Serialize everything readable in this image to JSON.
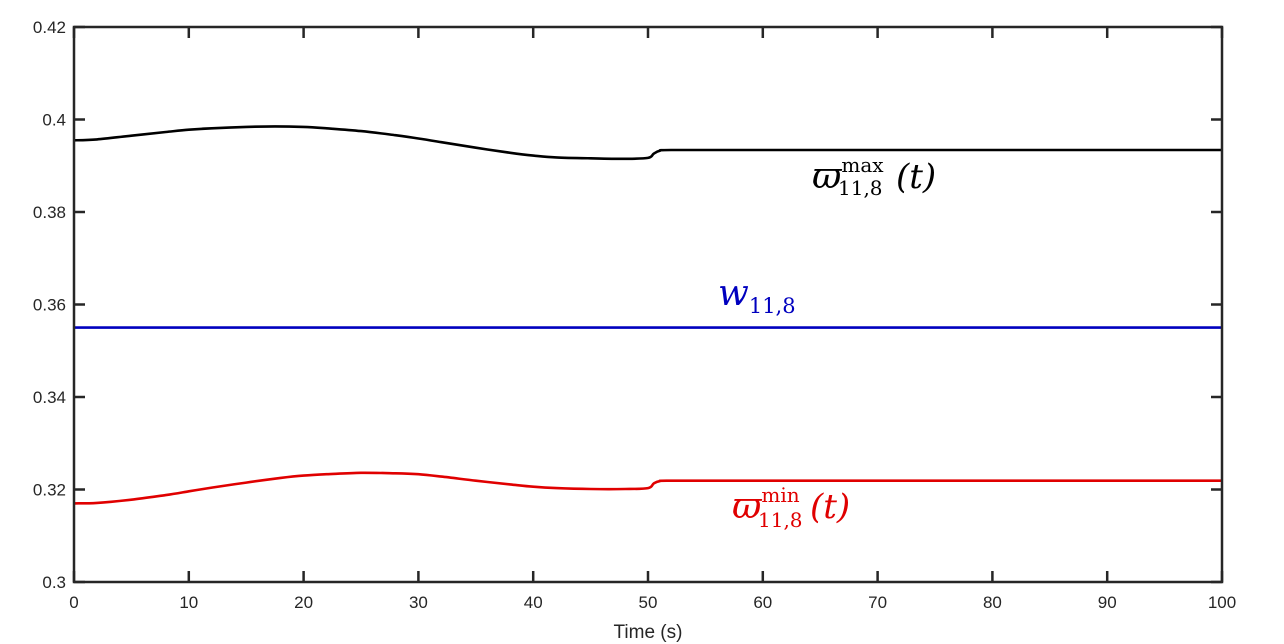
{
  "chart_data": {
    "type": "line",
    "xlabel": "Time (s)",
    "ylabel": "",
    "xlim": [
      0,
      100
    ],
    "ylim": [
      0.3,
      0.42
    ],
    "x_ticks": [
      0,
      10,
      20,
      30,
      40,
      50,
      60,
      70,
      80,
      90,
      100
    ],
    "y_ticks": [
      0.3,
      0.32,
      0.34,
      0.36,
      0.38,
      0.4,
      0.42
    ],
    "y_tick_labels": [
      "0.3",
      "0.32",
      "0.34",
      "0.36",
      "0.38",
      "0.4",
      "0.42"
    ],
    "grid": false,
    "series": [
      {
        "key": "max",
        "color": "#000000",
        "x": [
          0,
          2,
          5,
          8,
          10,
          12,
          15,
          17.5,
          20,
          22,
          25,
          28,
          30,
          32,
          35,
          38,
          40,
          42,
          45,
          48,
          50,
          50.5,
          51,
          52,
          60,
          70,
          80,
          90,
          100
        ],
        "y": [
          0.3955,
          0.3957,
          0.3965,
          0.3973,
          0.3978,
          0.3981,
          0.3984,
          0.3985,
          0.3984,
          0.3981,
          0.3975,
          0.3966,
          0.3959,
          0.3951,
          0.3939,
          0.3928,
          0.3922,
          0.3918,
          0.3916,
          0.3915,
          0.3917,
          0.3926,
          0.3932,
          0.3934,
          0.3934,
          0.3934,
          0.3934,
          0.3934,
          0.3934
        ]
      },
      {
        "key": "w",
        "color": "#0000bf",
        "x": [
          0,
          100
        ],
        "y": [
          0.355,
          0.355
        ]
      },
      {
        "key": "min",
        "color": "#e00000",
        "x": [
          0,
          2,
          5,
          8,
          10,
          12,
          15,
          18,
          20,
          22,
          25,
          28,
          30,
          32,
          35,
          38,
          40,
          42,
          45,
          48,
          50,
          50.5,
          51,
          52,
          60,
          70,
          80,
          90,
          100
        ],
        "y": [
          0.317,
          0.3171,
          0.3178,
          0.3188,
          0.3196,
          0.3204,
          0.3215,
          0.3225,
          0.323,
          0.3233,
          0.3236,
          0.3235,
          0.3233,
          0.3228,
          0.3219,
          0.3211,
          0.3206,
          0.3203,
          0.3201,
          0.3201,
          0.3203,
          0.3213,
          0.3218,
          0.3219,
          0.3219,
          0.3219,
          0.3219,
          0.3219,
          0.3219
        ]
      }
    ],
    "annotations": {
      "max": {
        "base": "ϖ",
        "sub": "11,8",
        "sup": "max",
        "arg": "(t)",
        "color": "#000000"
      },
      "w": {
        "base": "w",
        "sub": "11,8",
        "color": "#0000bf"
      },
      "min": {
        "base": "ϖ",
        "sub": "11,8",
        "sup": "min",
        "arg": "(t)",
        "color": "#e00000"
      }
    }
  }
}
